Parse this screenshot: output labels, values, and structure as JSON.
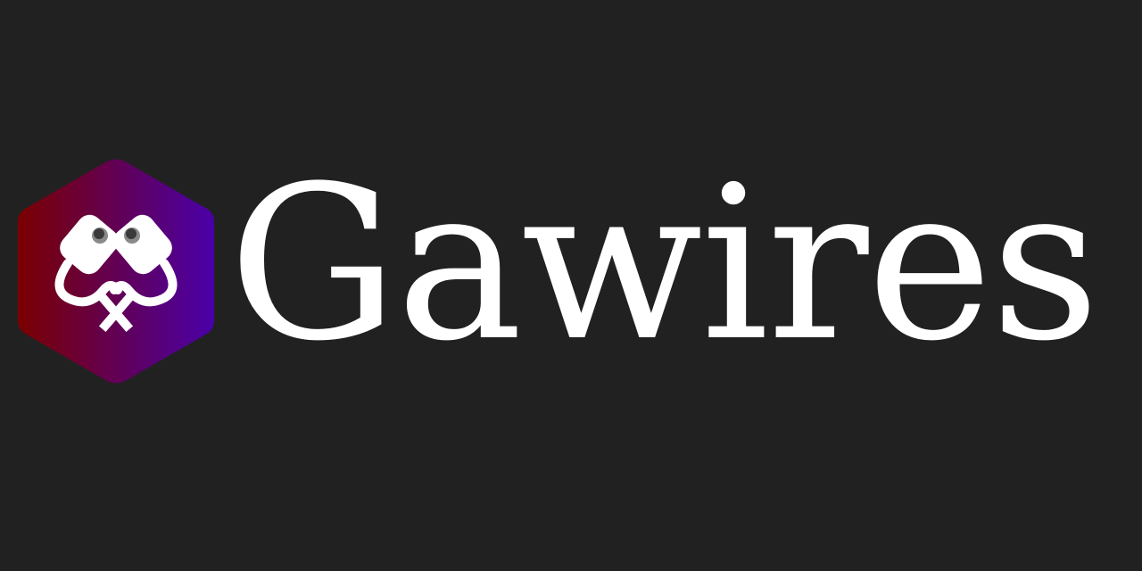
{
  "brand": {
    "name": "Gawires",
    "text_color": "#ffffff",
    "background_color": "#212121",
    "logo": {
      "icon": "hexagon-wire-plugs-icon",
      "gradient_start": "#7a0000",
      "gradient_end": "#4a00a8",
      "glyph_color": "#ffffff"
    }
  }
}
